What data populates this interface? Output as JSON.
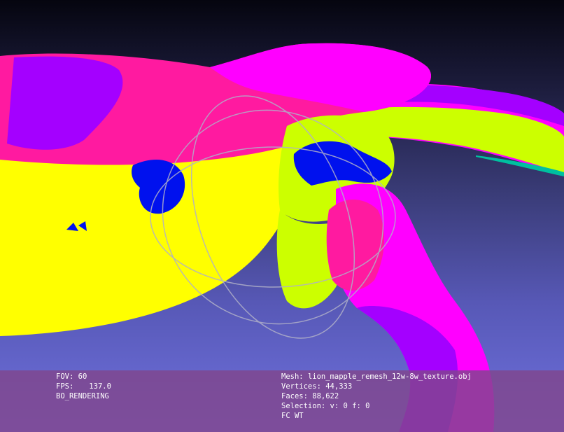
{
  "viewport": {
    "background_top": "#05050f",
    "background_bottom": "#6f71de",
    "trackball_color": "#b0b0c8",
    "mesh_colors": {
      "magenta": "#ff00ff",
      "purple": "#a400ff",
      "pink": "#ff1aa0",
      "yellow": "#ffff00",
      "lime": "#ccff00",
      "blue": "#0011ee",
      "teal": "#00c0a0"
    }
  },
  "info": {
    "fov_label": "FOV:",
    "fov_value": "60",
    "fps_label": "FPS:",
    "fps_value": "137.0",
    "render_mode": "BO_RENDERING",
    "mesh_label": "Mesh:",
    "mesh_name": "lion_mapple_remesh_12w-8w_texture.obj",
    "vertices_label": "Vertices:",
    "vertices_value": "44,333",
    "faces_label": "Faces:",
    "faces_value": "88,622",
    "selection_label": "Selection:",
    "selection_v_label": "v:",
    "selection_v_value": "0",
    "selection_f_label": "f:",
    "selection_f_value": "0",
    "flags": "FC WT"
  }
}
